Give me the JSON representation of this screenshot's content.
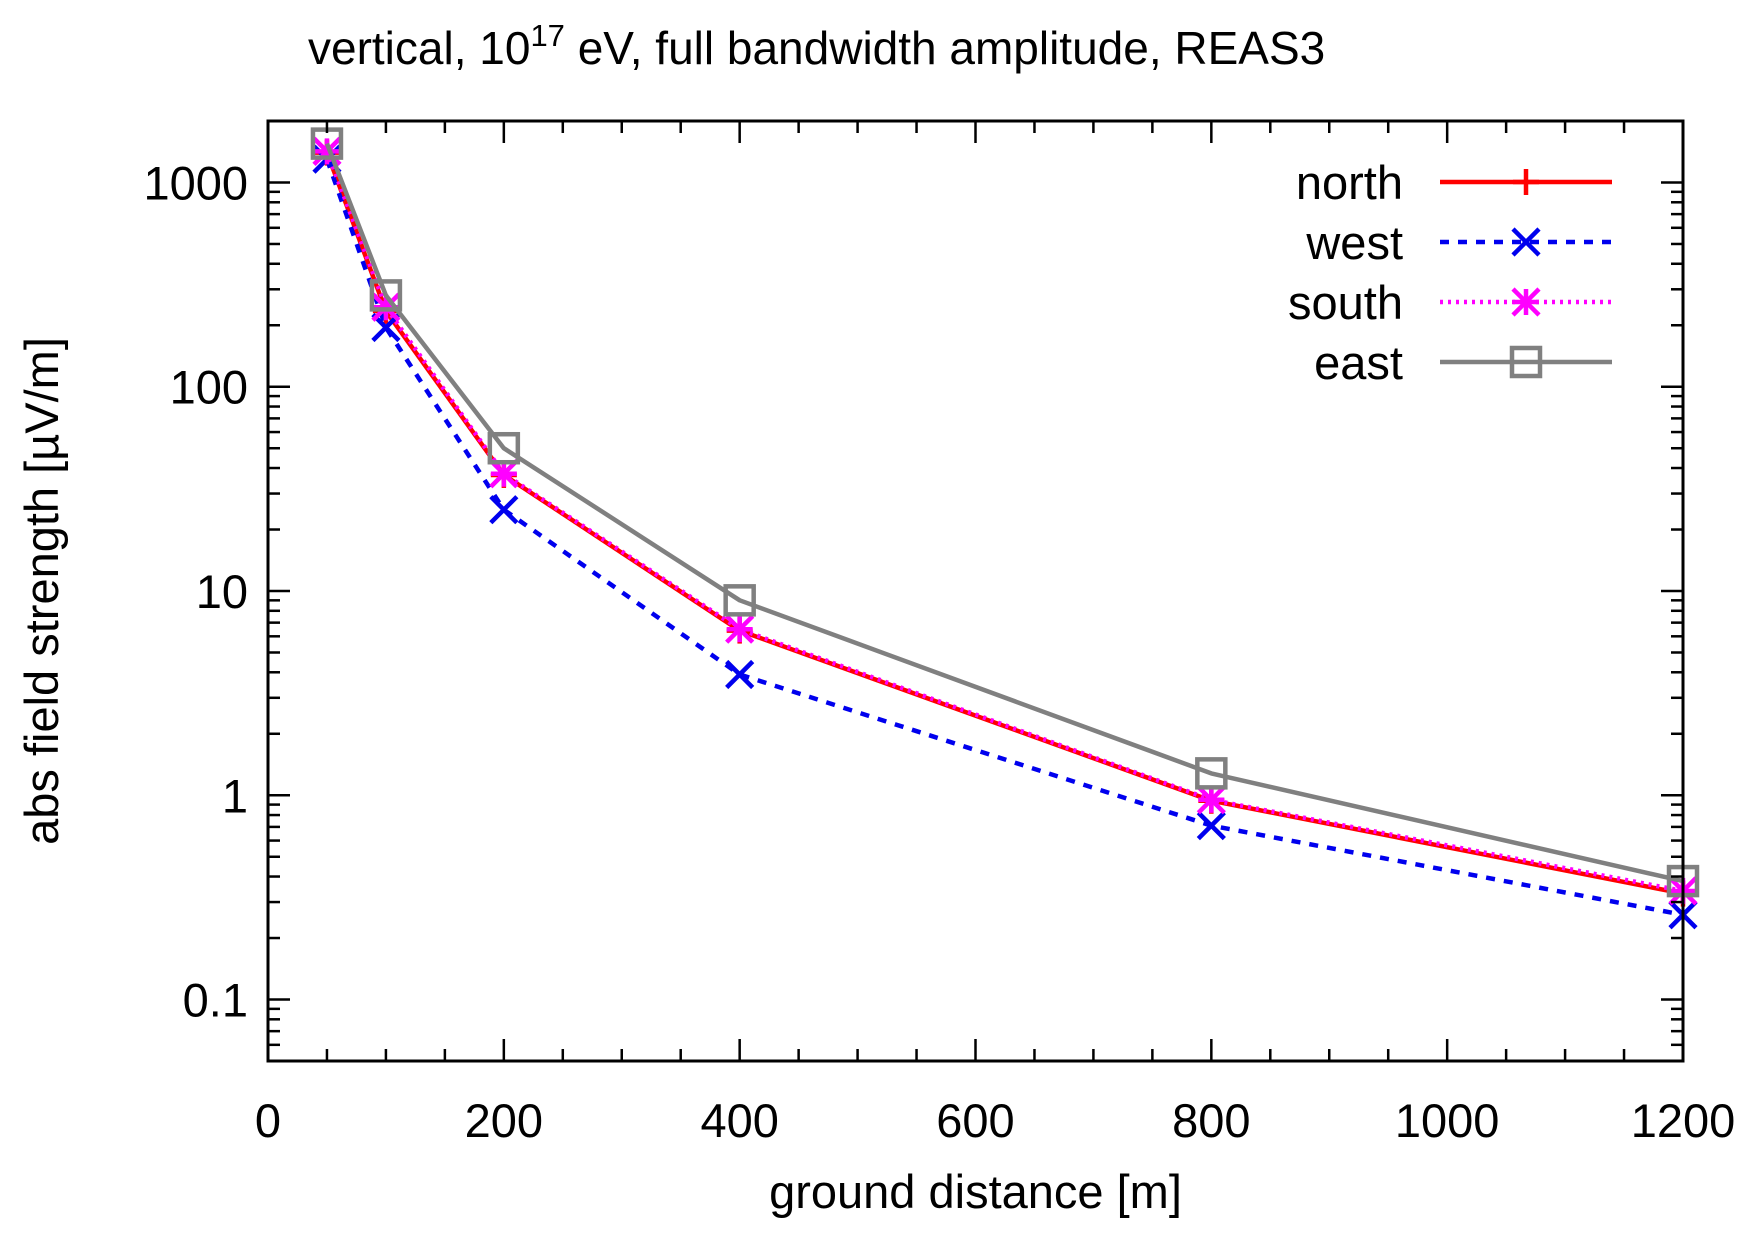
{
  "chart_data": {
    "type": "line",
    "title": {
      "prefix": "vertical, 10",
      "superscript": "17",
      "suffix": " eV, full bandwidth amplitude, REAS3"
    },
    "xlabel": "ground distance [m]",
    "ylabel": "abs field strength [µV/m]",
    "xscale": "linear",
    "yscale": "log",
    "xlim": [
      0,
      1200
    ],
    "ylim": [
      0.05,
      2000
    ],
    "xticks": [
      0,
      200,
      400,
      600,
      800,
      1000,
      1200
    ],
    "xtick_labels": [
      "0",
      "200",
      "400",
      "600",
      "800",
      "1000",
      "1200"
    ],
    "yticks": [
      0.1,
      1,
      10,
      100,
      1000
    ],
    "ytick_labels": [
      "0.1",
      "1",
      "10",
      "100",
      "1000"
    ],
    "grid": false,
    "legend_position": "top-right",
    "x": [
      50,
      100,
      200,
      400,
      800,
      1200
    ],
    "series": [
      {
        "name": "north",
        "color": "#ff0000",
        "dash": "solid",
        "marker": "plus",
        "values": [
          1400,
          235,
          37,
          6.4,
          0.94,
          0.33
        ]
      },
      {
        "name": "west",
        "color": "#0000ee",
        "dash": "dashed",
        "marker": "x",
        "values": [
          1300,
          195,
          25,
          3.9,
          0.71,
          0.26
        ]
      },
      {
        "name": "south",
        "color": "#ff00ff",
        "dash": "dotted",
        "marker": "star",
        "values": [
          1420,
          245,
          37.5,
          6.5,
          0.95,
          0.34
        ]
      },
      {
        "name": "east",
        "color": "#808080",
        "dash": "solid",
        "marker": "square",
        "values": [
          1550,
          280,
          50,
          9,
          1.28,
          0.38
        ]
      }
    ]
  }
}
